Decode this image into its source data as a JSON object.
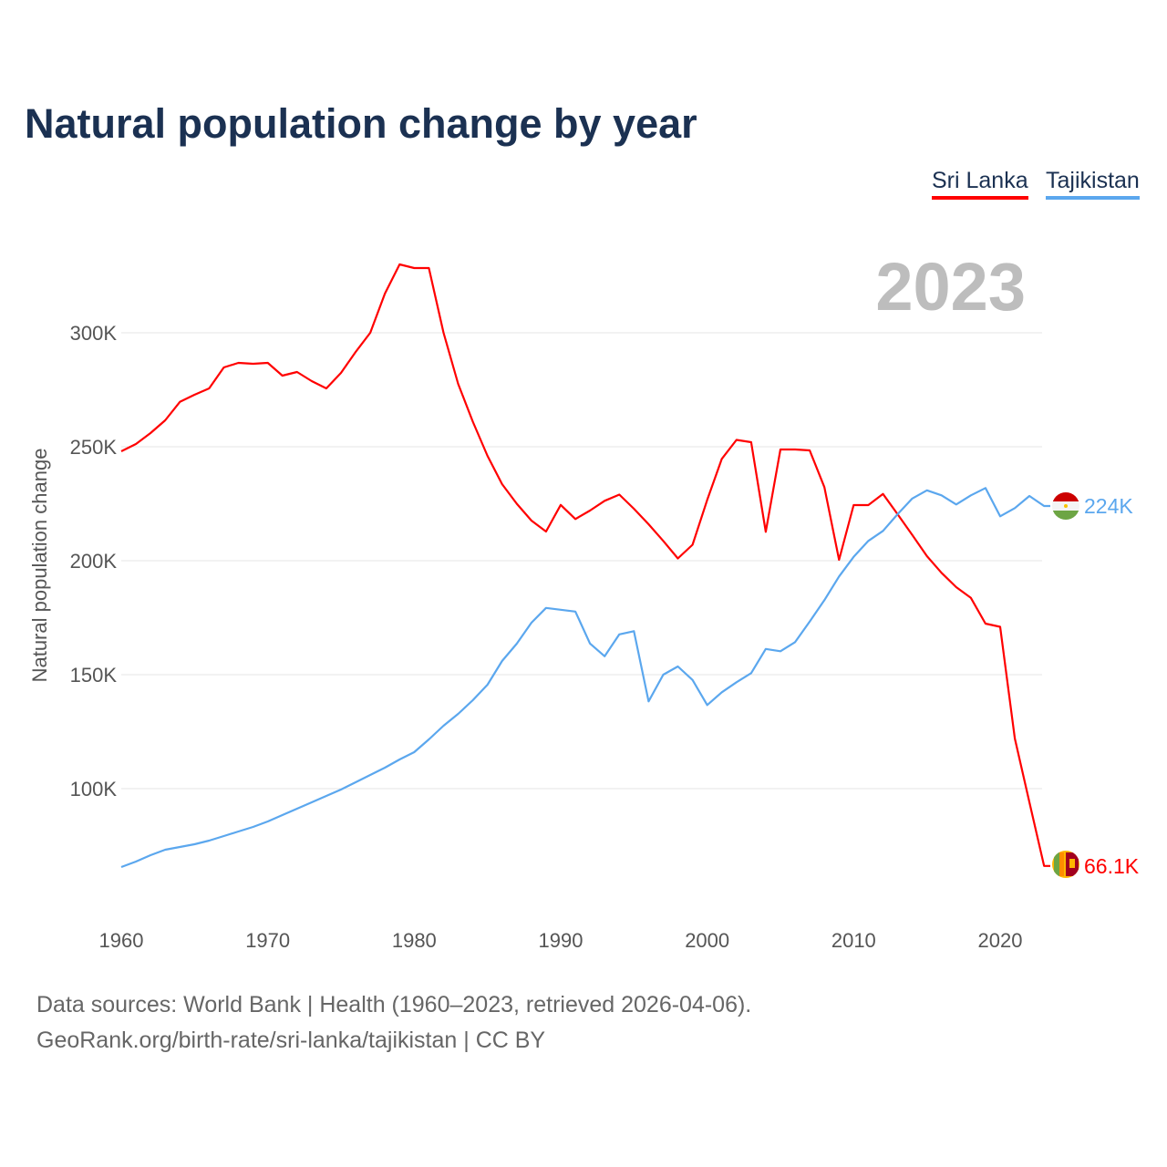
{
  "title": "Natural population change by year",
  "legend": [
    {
      "label": "Sri Lanka",
      "color": "#ff0000"
    },
    {
      "label": "Tajikistan",
      "color": "#5ba7ee"
    }
  ],
  "year_label": "2023",
  "footer": {
    "line1": "Data sources: World Bank | Health (1960–2023, retrieved 2026-04-06).",
    "line2": "GeoRank.org/birth-rate/sri-lanka/tajikistan | CC BY"
  },
  "chart_data": {
    "type": "line",
    "title": "Natural population change by year",
    "xlabel": "",
    "ylabel": "Natural population change",
    "xlim": [
      1960,
      2023
    ],
    "ylim": [
      55,
      335
    ],
    "yunits": "thousands",
    "xticks": [
      1960,
      1970,
      1980,
      1990,
      2000,
      2010,
      2020
    ],
    "xtick_labels": [
      "1960",
      "1970",
      "1980",
      "1990",
      "2000",
      "2010",
      "2020"
    ],
    "yticks": [
      100,
      150,
      200,
      250,
      300
    ],
    "ytick_labels": [
      "100K",
      "150K",
      "200K",
      "250K",
      "300K"
    ],
    "grid": true,
    "legend_position": "top-right",
    "series": [
      {
        "name": "Sri Lanka",
        "color": "#ff0000",
        "end_label": "66.1K",
        "start_year": 1960,
        "values": [
          248,
          251.2,
          256,
          261.6,
          269.7,
          272.8,
          275.6,
          284.8,
          286.8,
          286.4,
          286.8,
          281.2,
          282.8,
          278.8,
          275.6,
          282.4,
          291.6,
          300,
          317.2,
          330,
          328.4,
          328.4,
          300,
          277.6,
          261,
          246,
          233.6,
          225,
          217.6,
          212.8,
          224.5,
          218.3,
          222,
          226.3,
          229,
          222.8,
          216,
          208.7,
          201,
          207,
          226.7,
          244.7,
          253,
          252,
          212.7,
          248.8,
          248.8,
          248.4,
          232.3,
          200.4,
          224.4,
          224.4,
          229.3,
          220.4,
          211.3,
          202,
          194.7,
          188.4,
          183.7,
          172.4,
          171,
          122,
          94,
          66.1
        ]
      },
      {
        "name": "Tajikistan",
        "color": "#5ba7ee",
        "end_label": "224K",
        "start_year": 1960,
        "values": [
          65.6,
          68,
          70.8,
          73.2,
          74.4,
          75.6,
          77.2,
          79.2,
          81.2,
          83.2,
          85.6,
          88.4,
          91.2,
          94,
          96.8,
          99.6,
          102.8,
          106,
          109.2,
          112.8,
          116,
          121.6,
          127.6,
          132.8,
          138.8,
          145.6,
          156,
          163.6,
          172.8,
          179.3,
          178.5,
          177.7,
          163.7,
          158.1,
          167.7,
          169.1,
          138.3,
          150,
          153.6,
          147.7,
          136.7,
          142.3,
          146.7,
          150.7,
          161.3,
          160.3,
          164.3,
          173.3,
          182.7,
          193.1,
          201.7,
          208.7,
          213.1,
          220.4,
          227.3,
          230.9,
          228.7,
          224.7,
          228.7,
          231.9,
          219.5,
          223.1,
          228.4,
          224
        ]
      }
    ]
  }
}
